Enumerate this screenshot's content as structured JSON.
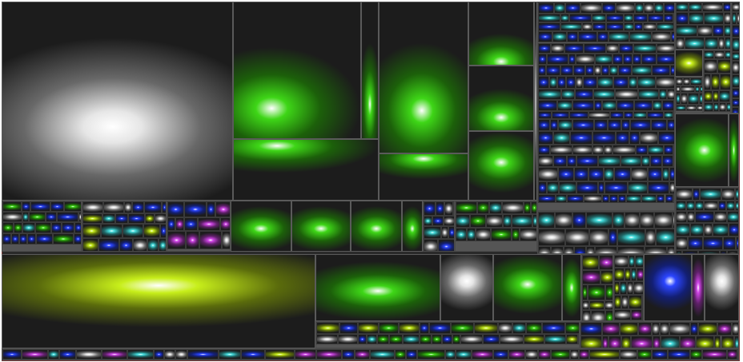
{
  "app": {
    "view": "treemap"
  },
  "treemap": {
    "colors": {
      "gray": "#e6e6e6",
      "green": "#3ed617",
      "yellowgreen": "#c7ee1a",
      "blue": "#2b45ff",
      "cyan": "#46e0e0",
      "magenta": "#d046e6",
      "background": "#2a2a2a"
    }
  }
}
